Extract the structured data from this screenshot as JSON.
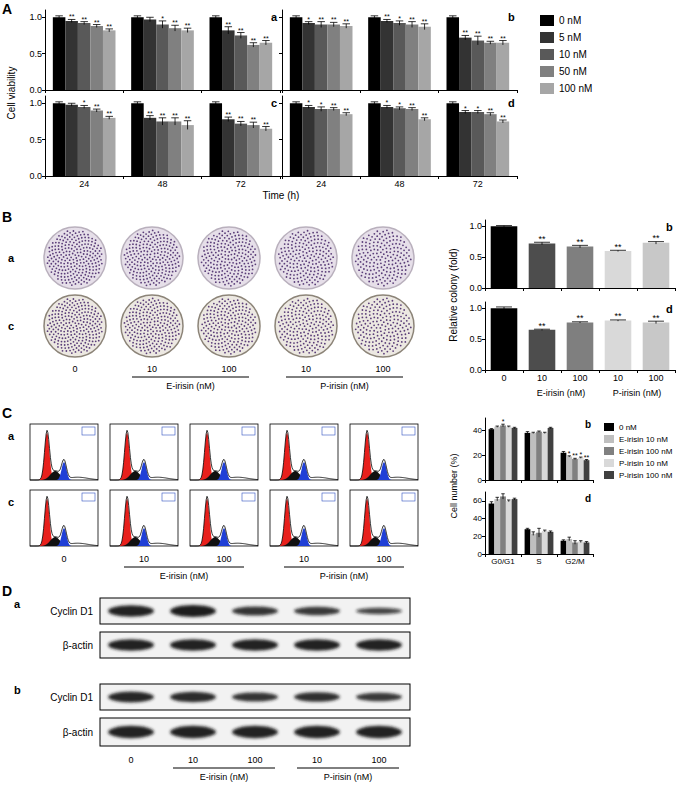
{
  "figure": {
    "A": {
      "label": "A",
      "y_label": "Cell viability",
      "x_label": "Time (h)"
    },
    "B": {
      "label": "B",
      "image_rows": [
        "a",
        "c"
      ],
      "dose_labels": [
        "0",
        "10",
        "100",
        "10",
        "100"
      ],
      "group_labels": [
        "E-irisin (nM)",
        "P-irisin (nM)"
      ],
      "y_label": "Relative colony (fold)"
    },
    "C": {
      "label": "C",
      "image_rows": [
        "a",
        "c"
      ],
      "dose_labels": [
        "0",
        "10",
        "100",
        "10",
        "100"
      ],
      "group_labels": [
        "E-irisin (nM)",
        "P-irisin (nM)"
      ],
      "y_label": "Cell number (%)"
    },
    "D": {
      "label": "D",
      "blots": [
        {
          "label": "a",
          "rows": [
            "Cyclin D1",
            "β-actin"
          ]
        },
        {
          "label": "b",
          "rows": [
            "Cyclin D1",
            "β-actin"
          ]
        }
      ],
      "dose_labels": [
        "0",
        "10",
        "100",
        "10",
        "100"
      ],
      "group_labels": [
        "E-irisin (nM)",
        "P-irisin (nM)"
      ]
    }
  },
  "chart_data": [
    {
      "type": "bar",
      "figure_panel": "A",
      "panel": "a",
      "categories": [
        "24",
        "48",
        "72"
      ],
      "series": [
        {
          "name": "0 nM",
          "color": "#000000",
          "values": [
            1.0,
            1.0,
            1.0
          ],
          "errors": [
            0.02,
            0.02,
            0.02
          ],
          "significance": [
            null,
            null,
            null
          ]
        },
        {
          "name": "5 nM",
          "color": "#333333",
          "values": [
            0.95,
            0.97,
            0.82
          ],
          "errors": [
            0.02,
            0.03,
            0.05
          ],
          "significance": [
            "**",
            null,
            "**"
          ]
        },
        {
          "name": "10 nM",
          "color": "#595959",
          "values": [
            0.92,
            0.9,
            0.75
          ],
          "errors": [
            0.02,
            0.05,
            0.04
          ],
          "significance": [
            "**",
            "*",
            "**"
          ]
        },
        {
          "name": "50 nM",
          "color": "#808080",
          "values": [
            0.88,
            0.85,
            0.62
          ],
          "errors": [
            0.02,
            0.04,
            0.03
          ],
          "significance": [
            "**",
            "**",
            "**"
          ]
        },
        {
          "name": "100 nM",
          "color": "#a6a6a6",
          "values": [
            0.82,
            0.82,
            0.65
          ],
          "errors": [
            0.02,
            0.03,
            0.03
          ],
          "significance": [
            "**",
            "**",
            "**"
          ]
        }
      ],
      "ylim": [
        0,
        1.1
      ],
      "yticks": [
        {
          "value": 0,
          "label": "0.0"
        },
        {
          "value": 0.5,
          "label": "0.5"
        },
        {
          "value": 1,
          "label": "1.0"
        }
      ],
      "tick_labels": "y"
    },
    {
      "type": "bar",
      "figure_panel": "A",
      "panel": "b",
      "categories": [
        "24",
        "48",
        "72"
      ],
      "series": [
        {
          "name": "0 nM",
          "color": "#000000",
          "values": [
            1.0,
            1.0,
            1.0
          ],
          "errors": [
            0.02,
            0.02,
            0.02
          ],
          "significance": [
            null,
            null,
            null
          ]
        },
        {
          "name": "5 nM",
          "color": "#333333",
          "values": [
            0.92,
            0.95,
            0.72
          ],
          "errors": [
            0.02,
            0.02,
            0.03
          ],
          "significance": [
            "*",
            "**",
            "**"
          ]
        },
        {
          "name": "10 nM",
          "color": "#595959",
          "values": [
            0.9,
            0.92,
            0.68
          ],
          "errors": [
            0.04,
            0.03,
            0.06
          ],
          "significance": [
            "**",
            "*",
            "**"
          ]
        },
        {
          "name": "50 nM",
          "color": "#808080",
          "values": [
            0.9,
            0.9,
            0.65
          ],
          "errors": [
            0.03,
            0.04,
            0.02
          ],
          "significance": [
            "**",
            "**",
            "**"
          ]
        },
        {
          "name": "100 nM",
          "color": "#a6a6a6",
          "values": [
            0.88,
            0.87,
            0.65
          ],
          "errors": [
            0.03,
            0.04,
            0.03
          ],
          "significance": [
            "**",
            "**",
            "**"
          ]
        }
      ],
      "ylim": [
        0,
        1.1
      ],
      "yticks": [
        {
          "value": 0,
          "label": "0.0"
        },
        {
          "value": 0.5,
          "label": "0.5"
        },
        {
          "value": 1,
          "label": "1.0"
        }
      ],
      "tick_labels": false,
      "legend": "right"
    },
    {
      "type": "bar",
      "figure_panel": "A",
      "panel": "c",
      "categories": [
        "24",
        "48",
        "72"
      ],
      "series": [
        {
          "name": "0 nM",
          "color": "#000000",
          "values": [
            1.0,
            1.0,
            1.0
          ],
          "errors": [
            0.02,
            0.02,
            0.02
          ],
          "significance": [
            null,
            null,
            null
          ]
        },
        {
          "name": "5 nM",
          "color": "#333333",
          "values": [
            0.98,
            0.8,
            0.78
          ],
          "errors": [
            0.02,
            0.03,
            0.03
          ],
          "significance": [
            null,
            "**",
            "**"
          ]
        },
        {
          "name": "10 nM",
          "color": "#595959",
          "values": [
            0.95,
            0.75,
            0.72
          ],
          "errors": [
            0.02,
            0.05,
            0.03
          ],
          "significance": [
            "*",
            "**",
            "**"
          ]
        },
        {
          "name": "50 nM",
          "color": "#808080",
          "values": [
            0.9,
            0.75,
            0.7
          ],
          "errors": [
            0.02,
            0.05,
            0.04
          ],
          "significance": [
            "**",
            "**",
            "**"
          ]
        },
        {
          "name": "100 nM",
          "color": "#a6a6a6",
          "values": [
            0.8,
            0.7,
            0.65
          ],
          "errors": [
            0.02,
            0.06,
            0.03
          ],
          "significance": [
            "**",
            "**",
            "**"
          ]
        }
      ],
      "ylim": [
        0,
        1.1
      ],
      "yticks": [
        {
          "value": 0,
          "label": "0.0"
        },
        {
          "value": 0.5,
          "label": "0.5"
        },
        {
          "value": 1,
          "label": "1.0"
        }
      ]
    },
    {
      "type": "bar",
      "figure_panel": "A",
      "panel": "d",
      "categories": [
        "24",
        "48",
        "72"
      ],
      "series": [
        {
          "name": "0 nM",
          "color": "#000000",
          "values": [
            1.0,
            1.0,
            1.0
          ],
          "errors": [
            0.02,
            0.02,
            0.02
          ],
          "significance": [
            null,
            null,
            null
          ]
        },
        {
          "name": "5 nM",
          "color": "#333333",
          "values": [
            0.95,
            0.95,
            0.88
          ],
          "errors": [
            0.02,
            0.02,
            0.02
          ],
          "significance": [
            "*",
            "*",
            "*"
          ]
        },
        {
          "name": "10 nM",
          "color": "#595959",
          "values": [
            0.92,
            0.93,
            0.88
          ],
          "errors": [
            0.03,
            0.02,
            0.02
          ],
          "significance": [
            "*",
            "*",
            "*"
          ]
        },
        {
          "name": "50 nM",
          "color": "#808080",
          "values": [
            0.92,
            0.92,
            0.85
          ],
          "errors": [
            0.02,
            0.02,
            0.02
          ],
          "significance": [
            "**",
            "**",
            "**"
          ]
        },
        {
          "name": "100 nM",
          "color": "#a6a6a6",
          "values": [
            0.85,
            0.78,
            0.75
          ],
          "errors": [
            0.02,
            0.02,
            0.02
          ],
          "significance": [
            "**",
            "**",
            "**"
          ]
        }
      ],
      "ylim": [
        0,
        1.1
      ],
      "yticks": [
        {
          "value": 0,
          "label": "0.0"
        },
        {
          "value": 0.5,
          "label": "0.5"
        },
        {
          "value": 1,
          "label": "1.0"
        }
      ],
      "tick_labels": "x"
    },
    {
      "type": "bar",
      "figure_panel": "B",
      "panel": "b",
      "categories": [
        "0",
        "10",
        "100",
        "10",
        "100"
      ],
      "series": [
        {
          "colors": [
            "#000000",
            "#4d4d4d",
            "#7f7f7f",
            "#d9d9d9",
            "#c8c8c8"
          ],
          "values": [
            1.0,
            0.72,
            0.67,
            0.6,
            0.73
          ],
          "errors": [
            0.01,
            0.02,
            0.02,
            0.01,
            0.02
          ],
          "significance": [
            null,
            "**",
            "**",
            "**",
            "**"
          ]
        }
      ],
      "ylim": [
        0,
        1.1
      ],
      "yticks": [
        {
          "value": 0,
          "label": "0.0"
        },
        {
          "value": 0.5,
          "label": "0.5"
        },
        {
          "value": 1,
          "label": "1.0"
        }
      ],
      "tick_labels": "y"
    },
    {
      "type": "bar",
      "figure_panel": "B",
      "panel": "d",
      "categories": [
        "0",
        "10",
        "100",
        "10",
        "100"
      ],
      "series": [
        {
          "colors": [
            "#000000",
            "#4d4d4d",
            "#7f7f7f",
            "#d9d9d9",
            "#c8c8c8"
          ],
          "values": [
            1.0,
            0.65,
            0.77,
            0.8,
            0.77
          ],
          "errors": [
            0.02,
            0.01,
            0.01,
            0.01,
            0.02
          ],
          "significance": [
            null,
            "**",
            "**",
            "**",
            "**"
          ]
        }
      ],
      "ylim": [
        0,
        1.1
      ],
      "yticks": [
        {
          "value": 0,
          "label": "0.0"
        },
        {
          "value": 0.5,
          "label": "0.5"
        },
        {
          "value": 1,
          "label": "1.0"
        }
      ]
    },
    {
      "type": "bar",
      "figure_panel": "C",
      "panel": "b",
      "categories": [
        "G0/G1",
        "S",
        "G2/M"
      ],
      "series": [
        {
          "name": "0 nM",
          "color": "#000000",
          "values": [
            41,
            38,
            22
          ],
          "errors": [
            0.5,
            1,
            1
          ],
          "significance": [
            null,
            null,
            null
          ]
        },
        {
          "name": "E-irisin 10 nM",
          "color": "#bfbfbf",
          "values": [
            43,
            38,
            19
          ],
          "errors": [
            0.5,
            0.5,
            0.5
          ],
          "significance": [
            null,
            null,
            "*"
          ]
        },
        {
          "name": "E-irisin 100 nM",
          "color": "#808080",
          "values": [
            44,
            39,
            17
          ],
          "errors": [
            1,
            0.5,
            0.5
          ],
          "significance": [
            "*",
            null,
            "**"
          ]
        },
        {
          "name": "P-irisin 10 nM",
          "color": "#d9d9d9",
          "values": [
            43,
            38,
            18
          ],
          "errors": [
            0.5,
            0.5,
            0.5
          ],
          "significance": [
            null,
            null,
            "*"
          ]
        },
        {
          "name": "P-irisin 100 nM",
          "color": "#404040",
          "values": [
            42,
            42,
            16
          ],
          "errors": [
            0.5,
            0.5,
            0.5
          ],
          "significance": [
            null,
            null,
            "**"
          ]
        }
      ],
      "ylim": [
        0,
        50
      ],
      "yticks": [
        0,
        20,
        40
      ],
      "tick_labels": "y",
      "legend": "right"
    },
    {
      "type": "bar",
      "figure_panel": "C",
      "panel": "d",
      "categories": [
        "G0/G1",
        "S",
        "G2/M"
      ],
      "series": [
        {
          "name": "0 nM",
          "color": "#000000",
          "values": [
            57,
            28,
            15
          ],
          "errors": [
            2,
            1,
            1
          ]
        },
        {
          "name": "E-irisin 10 nM",
          "color": "#bfbfbf",
          "values": [
            62,
            23,
            17
          ],
          "errors": [
            2,
            2,
            2
          ]
        },
        {
          "name": "E-irisin 100 nM",
          "color": "#808080",
          "values": [
            65,
            24,
            13
          ],
          "errors": [
            3,
            5,
            2
          ]
        },
        {
          "name": "P-irisin 10 nM",
          "color": "#d9d9d9",
          "values": [
            60,
            26,
            14
          ],
          "errors": [
            1,
            1,
            1
          ]
        },
        {
          "name": "P-irisin 100 nM",
          "color": "#404040",
          "values": [
            62,
            25,
            13
          ],
          "errors": [
            1,
            1,
            1
          ]
        }
      ],
      "ylim": [
        0,
        70
      ],
      "yticks": [
        0,
        20,
        40,
        60
      ]
    }
  ]
}
